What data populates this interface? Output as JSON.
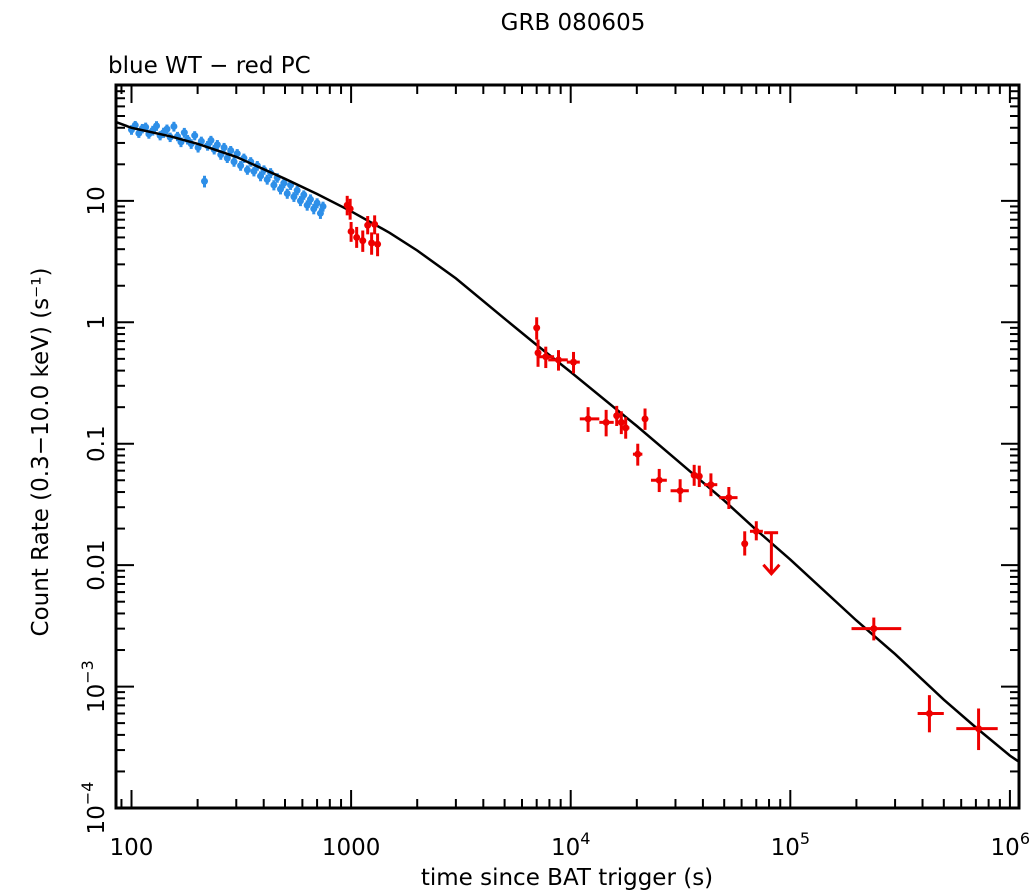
{
  "chart_data": {
    "type": "scatter",
    "title": "GRB 080605",
    "subtitle": "blue WT − red PC",
    "xlabel": "time since BAT trigger (s)",
    "ylabel": "Count Rate (0.3−10.0 keV) (s⁻¹)",
    "x_scale": "log",
    "y_scale": "log",
    "xlim": [
      85,
      1100000
    ],
    "ylim": [
      0.0001,
      90
    ],
    "grid": false,
    "x_ticks": [
      {
        "value": 100,
        "label": "100"
      },
      {
        "value": 1000,
        "label": "1000"
      },
      {
        "value": 10000,
        "mantissa": "10",
        "exp": "4"
      },
      {
        "value": 100000,
        "mantissa": "10",
        "exp": "5"
      },
      {
        "value": 1000000,
        "mantissa": "10",
        "exp": "6"
      }
    ],
    "y_ticks": [
      {
        "value": 0.0001,
        "mantissa": "10",
        "exp": "−4"
      },
      {
        "value": 0.001,
        "mantissa": "10",
        "exp": "−3"
      },
      {
        "value": 0.01,
        "label": "0.01"
      },
      {
        "value": 0.1,
        "label": "0.1"
      },
      {
        "value": 1,
        "label": "1"
      },
      {
        "value": 10,
        "label": "10"
      }
    ],
    "colors": {
      "wt": "#2e8fe8",
      "pc": "#ee0000",
      "model": "#000000"
    },
    "series": [
      {
        "name": "WT",
        "color": "#2e8fe8",
        "points": [
          [
            100,
            38.5
          ],
          [
            104,
            42.0
          ],
          [
            108,
            36.0
          ],
          [
            112,
            39.5
          ],
          [
            116,
            40.5
          ],
          [
            120,
            35.5
          ],
          [
            125,
            38.0
          ],
          [
            130,
            41.5
          ],
          [
            135,
            34.5
          ],
          [
            140,
            36.5
          ],
          [
            145,
            39.0
          ],
          [
            150,
            33.5
          ],
          [
            156,
            41.0
          ],
          [
            162,
            34.0
          ],
          [
            168,
            30.5
          ],
          [
            174,
            36.5
          ],
          [
            180,
            32.0
          ],
          [
            187,
            29.5
          ],
          [
            194,
            34.5
          ],
          [
            201,
            27.5
          ],
          [
            208,
            31.0
          ],
          [
            215,
            14.5
          ],
          [
            222,
            28.5
          ],
          [
            230,
            31.5
          ],
          [
            238,
            26.5
          ],
          [
            246,
            29.0
          ],
          [
            255,
            24.0
          ],
          [
            264,
            27.5
          ],
          [
            273,
            22.5
          ],
          [
            283,
            26.0
          ],
          [
            293,
            21.0
          ],
          [
            303,
            24.5
          ],
          [
            314,
            19.5
          ],
          [
            325,
            22.5
          ],
          [
            337,
            18.0
          ],
          [
            349,
            21.0
          ],
          [
            361,
            17.5
          ],
          [
            374,
            19.5
          ],
          [
            387,
            16.0
          ],
          [
            401,
            18.0
          ],
          [
            415,
            15.0
          ],
          [
            430,
            17.0
          ],
          [
            445,
            13.5
          ],
          [
            461,
            15.5
          ],
          [
            477,
            12.5
          ],
          [
            494,
            14.0
          ],
          [
            512,
            11.5
          ],
          [
            530,
            13.5
          ],
          [
            549,
            10.8
          ],
          [
            568,
            12.2
          ],
          [
            588,
            10.0
          ],
          [
            609,
            11.2
          ],
          [
            631,
            9.2
          ],
          [
            653,
            10.3
          ],
          [
            676,
            8.6
          ],
          [
            700,
            9.6
          ],
          [
            725,
            7.9
          ],
          [
            745,
            9.0
          ]
        ],
        "errors": [
          [
            3.5,
            20
          ],
          [
            3.5,
            21
          ],
          [
            3.0,
            25
          ],
          [
            3.5,
            28
          ],
          [
            3.6,
            25
          ],
          [
            3.0,
            21
          ],
          [
            3.5,
            23
          ],
          [
            3.8,
            16
          ],
          [
            3.0,
            21
          ],
          [
            3.5,
            17
          ],
          [
            3.5,
            28
          ],
          [
            3.0,
            21
          ],
          [
            3.8,
            27
          ],
          [
            3.0,
            24
          ],
          [
            2.8,
            24
          ],
          [
            3.4,
            26
          ],
          [
            2.9,
            31
          ],
          [
            2.7,
            30
          ],
          [
            3.0,
            36
          ],
          [
            2.5,
            21
          ],
          [
            2.8,
            25
          ],
          [
            1.6,
            30
          ],
          [
            2.6,
            22
          ],
          [
            2.8,
            27
          ],
          [
            2.4,
            24
          ],
          [
            2.7,
            30
          ],
          [
            2.2,
            27
          ],
          [
            2.5,
            33
          ],
          [
            2.0,
            32
          ],
          [
            2.3,
            33
          ],
          [
            1.9,
            28
          ],
          [
            2.2,
            26
          ],
          [
            1.8,
            34
          ],
          [
            2.0,
            33
          ],
          [
            1.6,
            24
          ],
          [
            1.9,
            23
          ],
          [
            1.6,
            32
          ],
          [
            1.8,
            40
          ],
          [
            1.5,
            27
          ],
          [
            1.6,
            33
          ],
          [
            1.4,
            36
          ],
          [
            1.6,
            36
          ],
          [
            1.3,
            35
          ],
          [
            1.4,
            33
          ],
          [
            1.2,
            29
          ],
          [
            1.3,
            31
          ],
          [
            1.1,
            29
          ],
          [
            1.2,
            31
          ],
          [
            1.0,
            27
          ],
          [
            1.1,
            39
          ],
          [
            0.95,
            32
          ],
          [
            1.0,
            35
          ],
          [
            0.9,
            27
          ],
          [
            1.0,
            35
          ],
          [
            0.85,
            27
          ],
          [
            0.9,
            32
          ],
          [
            0.8,
            32
          ],
          [
            0.85,
            32
          ]
        ]
      },
      {
        "name": "PC",
        "color": "#ee0000",
        "points": [
          {
            "x": 960,
            "y": 9.2,
            "xlo": 940,
            "xhi": 980,
            "ylo": 7.6,
            "yhi": 11.0
          },
          {
            "x": 990,
            "y": 8.6,
            "xlo": 970,
            "xhi": 1010,
            "ylo": 7.0,
            "yhi": 10.4
          },
          {
            "x": 1000,
            "y": 5.6,
            "xlo": 975,
            "xhi": 1025,
            "ylo": 4.6,
            "yhi": 6.7
          },
          {
            "x": 1060,
            "y": 5.0,
            "xlo": 1035,
            "xhi": 1085,
            "ylo": 4.1,
            "yhi": 6.1
          },
          {
            "x": 1130,
            "y": 4.7,
            "xlo": 1100,
            "xhi": 1160,
            "ylo": 3.8,
            "yhi": 5.7
          },
          {
            "x": 1190,
            "y": 6.3,
            "xlo": 1160,
            "xhi": 1220,
            "ylo": 5.3,
            "yhi": 7.5
          },
          {
            "x": 1240,
            "y": 4.5,
            "xlo": 1210,
            "xhi": 1270,
            "ylo": 3.6,
            "yhi": 5.5
          },
          {
            "x": 1280,
            "y": 6.4,
            "xlo": 1250,
            "xhi": 1310,
            "ylo": 5.3,
            "yhi": 7.6
          },
          {
            "x": 1320,
            "y": 4.4,
            "xlo": 1290,
            "xhi": 1350,
            "ylo": 3.5,
            "yhi": 5.4
          },
          {
            "x": 7000,
            "y": 0.9,
            "xlo": 6800,
            "xhi": 7200,
            "ylo": 0.72,
            "yhi": 1.1
          },
          {
            "x": 7100,
            "y": 0.56,
            "xlo": 6900,
            "xhi": 7300,
            "ylo": 0.43,
            "yhi": 0.72
          },
          {
            "x": 7700,
            "y": 0.52,
            "xlo": 7000,
            "xhi": 8400,
            "ylo": 0.42,
            "yhi": 0.63
          },
          {
            "x": 8800,
            "y": 0.49,
            "xlo": 7900,
            "xhi": 9700,
            "ylo": 0.4,
            "yhi": 0.59
          },
          {
            "x": 10300,
            "y": 0.47,
            "xlo": 9600,
            "xhi": 11000,
            "ylo": 0.38,
            "yhi": 0.57
          },
          {
            "x": 12000,
            "y": 0.16,
            "xlo": 11000,
            "xhi": 13500,
            "ylo": 0.125,
            "yhi": 0.2
          },
          {
            "x": 14500,
            "y": 0.15,
            "xlo": 13500,
            "xhi": 15700,
            "ylo": 0.115,
            "yhi": 0.19
          },
          {
            "x": 16200,
            "y": 0.17,
            "xlo": 15700,
            "xhi": 16700,
            "ylo": 0.14,
            "yhi": 0.205
          },
          {
            "x": 17000,
            "y": 0.15,
            "xlo": 16500,
            "xhi": 17500,
            "ylo": 0.12,
            "yhi": 0.185
          },
          {
            "x": 17800,
            "y": 0.135,
            "xlo": 17200,
            "xhi": 18500,
            "ylo": 0.11,
            "yhi": 0.165
          },
          {
            "x": 20200,
            "y": 0.082,
            "xlo": 19200,
            "xhi": 21200,
            "ylo": 0.066,
            "yhi": 0.1
          },
          {
            "x": 21800,
            "y": 0.16,
            "xlo": 21300,
            "xhi": 22300,
            "ylo": 0.13,
            "yhi": 0.195
          },
          {
            "x": 25300,
            "y": 0.05,
            "xlo": 23200,
            "xhi": 27400,
            "ylo": 0.04,
            "yhi": 0.062
          },
          {
            "x": 31500,
            "y": 0.041,
            "xlo": 28500,
            "xhi": 34500,
            "ylo": 0.033,
            "yhi": 0.051
          },
          {
            "x": 36500,
            "y": 0.055,
            "xlo": 35500,
            "xhi": 37500,
            "ylo": 0.045,
            "yhi": 0.067
          },
          {
            "x": 38500,
            "y": 0.054,
            "xlo": 37500,
            "xhi": 39500,
            "ylo": 0.044,
            "yhi": 0.066
          },
          {
            "x": 43500,
            "y": 0.046,
            "xlo": 40500,
            "xhi": 46500,
            "ylo": 0.037,
            "yhi": 0.057
          },
          {
            "x": 52500,
            "y": 0.036,
            "xlo": 47500,
            "xhi": 57500,
            "ylo": 0.029,
            "yhi": 0.044
          },
          {
            "x": 62000,
            "y": 0.015,
            "xlo": 60500,
            "xhi": 63500,
            "ylo": 0.012,
            "yhi": 0.019
          },
          {
            "x": 70000,
            "y": 0.019,
            "xlo": 65500,
            "xhi": 75000,
            "ylo": 0.016,
            "yhi": 0.023
          },
          {
            "x": 82000,
            "y": 0.0115,
            "xlo": 76000,
            "xhi": 88000,
            "ylo": 0.0085,
            "yhi": 0.0185,
            "upper_limit": true
          },
          {
            "x": 240000,
            "y": 0.003,
            "xlo": 190000,
            "xhi": 320000,
            "ylo": 0.0024,
            "yhi": 0.0037
          },
          {
            "x": 430000,
            "y": 0.0006,
            "xlo": 380000,
            "xhi": 500000,
            "ylo": 0.00042,
            "yhi": 0.00085
          },
          {
            "x": 720000,
            "y": 0.00045,
            "xlo": 570000,
            "xhi": 880000,
            "ylo": 0.0003,
            "yhi": 0.00066
          }
        ]
      },
      {
        "type": "line",
        "color": "#000000",
        "points": [
          [
            85,
            44.5
          ],
          [
            100,
            40.0
          ],
          [
            150,
            34.0
          ],
          [
            200,
            29.5
          ],
          [
            300,
            23.0
          ],
          [
            500,
            15.2
          ],
          [
            700,
            11.4
          ],
          [
            1000,
            8.2
          ],
          [
            1500,
            5.45
          ],
          [
            2000,
            3.9
          ],
          [
            3000,
            2.3
          ],
          [
            5000,
            1.07
          ],
          [
            7000,
            0.65
          ],
          [
            10000,
            0.39
          ],
          [
            20000,
            0.14
          ],
          [
            30000,
            0.075
          ],
          [
            50000,
            0.034
          ],
          [
            70000,
            0.0195
          ],
          [
            100000,
            0.0111
          ],
          [
            200000,
            0.0035
          ],
          [
            300000,
            0.00185
          ],
          [
            500000,
            0.00078
          ],
          [
            700000,
            0.00046
          ],
          [
            1000000,
            0.00027
          ],
          [
            1100000,
            0.00024
          ]
        ]
      }
    ]
  }
}
